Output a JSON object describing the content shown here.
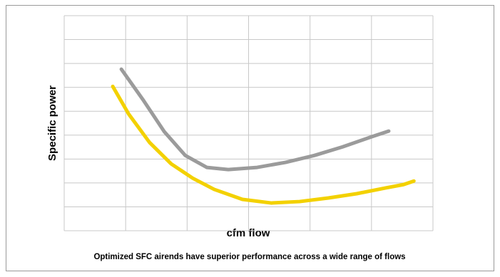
{
  "chart_data": {
    "type": "line",
    "xlabel": "cfm flow",
    "ylabel": "Specific power",
    "caption": "Optimized SFC airends have superior performance across a wide range of flows",
    "xlim": [
      0,
      6
    ],
    "xticks": [
      0,
      1,
      2,
      3,
      4,
      5,
      6
    ],
    "ylim": [
      0,
      9
    ],
    "yticks": [
      0,
      1,
      2,
      3,
      4,
      5,
      6,
      7,
      8,
      9
    ],
    "grid": true,
    "series": [
      {
        "color": "#9b9b9b",
        "x": [
          0.93,
          1.28,
          1.63,
          1.97,
          2.32,
          2.67,
          3.14,
          3.6,
          4.07,
          4.53,
          5.0,
          5.28
        ],
        "values": [
          6.76,
          5.49,
          4.14,
          3.15,
          2.65,
          2.56,
          2.65,
          2.86,
          3.15,
          3.51,
          3.93,
          4.17
        ]
      },
      {
        "color": "#f3d100",
        "x": [
          0.79,
          1.05,
          1.39,
          1.74,
          2.09,
          2.44,
          2.9,
          3.37,
          3.83,
          4.3,
          4.76,
          5.23,
          5.52,
          5.69
        ],
        "values": [
          6.04,
          4.88,
          3.69,
          2.8,
          2.2,
          1.73,
          1.31,
          1.16,
          1.22,
          1.37,
          1.55,
          1.79,
          1.93,
          2.08
        ]
      }
    ]
  }
}
